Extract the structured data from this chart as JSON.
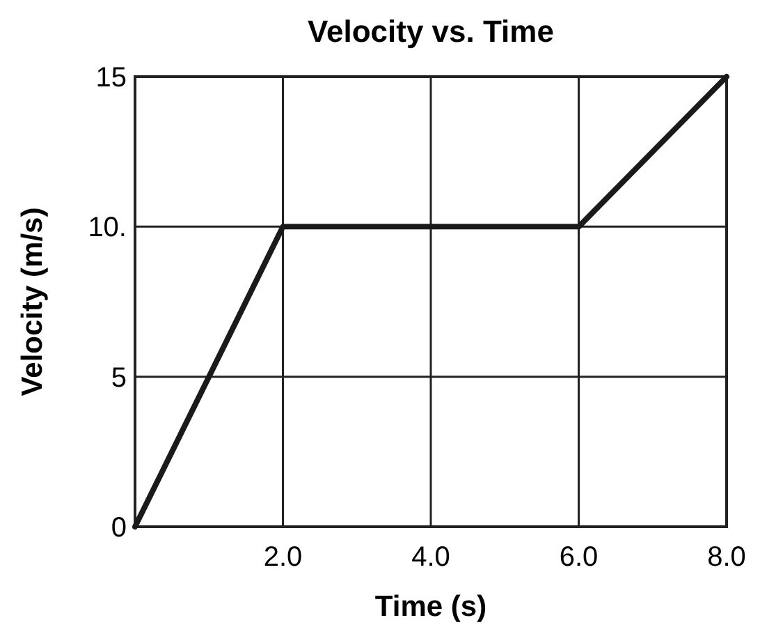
{
  "chart_data": {
    "type": "line",
    "title": "Velocity vs. Time",
    "xlabel": "Time (s)",
    "ylabel": "Velocity (m/s)",
    "x": [
      0,
      2,
      6,
      8
    ],
    "series": [
      {
        "color": "#1a1a1a",
        "values": [
          0,
          10,
          10,
          15
        ]
      }
    ],
    "xlim": [
      0,
      8
    ],
    "xticks": [
      {
        "value": 0,
        "label": null
      },
      {
        "value": 2,
        "label": "2.0"
      },
      {
        "value": 4,
        "label": "4.0"
      },
      {
        "value": 6,
        "label": "6.0"
      },
      {
        "value": 8,
        "label": "8.0"
      }
    ],
    "ylim": [
      0,
      15
    ],
    "yticks": [
      0,
      5,
      {
        "value": 10,
        "label": "10."
      },
      15
    ],
    "grid": true,
    "marker": "none",
    "line_style": "solid"
  }
}
